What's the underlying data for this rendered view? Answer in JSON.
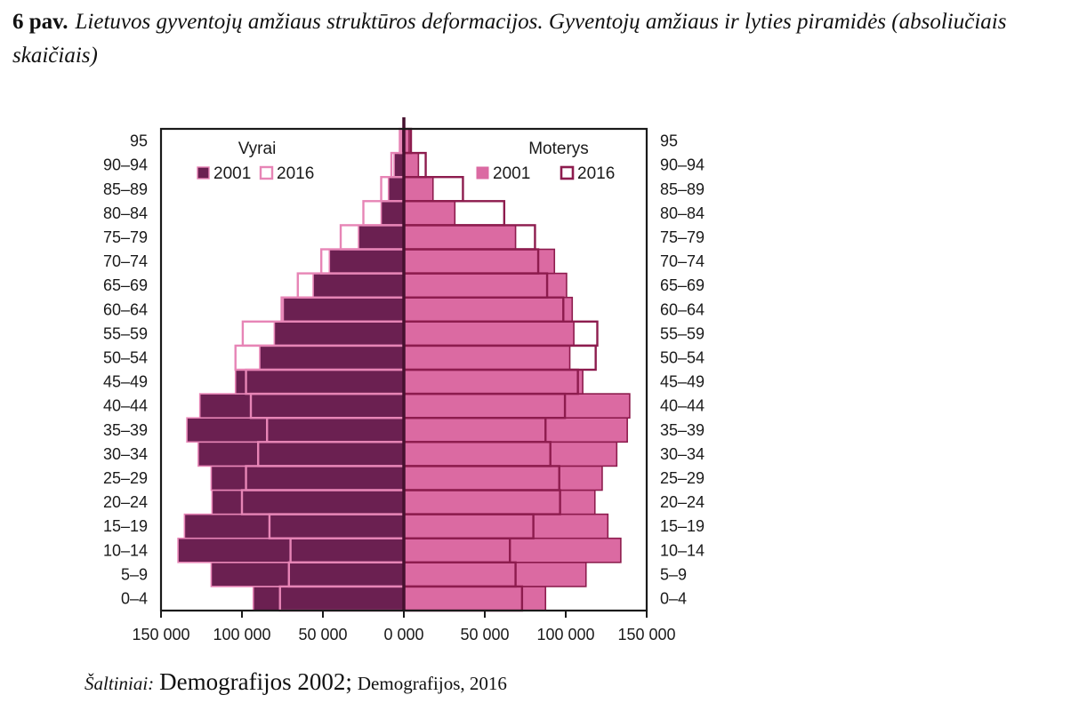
{
  "title": {
    "label": "6 pav.",
    "italic1": "Lietuvos gyventojų amžiaus struktūros deformacijos. Gyventojų amžiaus ir lyties piramidės",
    "italic2": "(absoliučiais skaičiais)"
  },
  "source": {
    "prefix": "Šaltiniai:",
    "part1": "Demografijos 2002;",
    "part2": "Demografijos, 2016"
  },
  "chart_data": {
    "type": "bar",
    "subtype": "population-pyramid",
    "title": "Gyventojų amžiaus ir lyties piramidės (absoliučiais skaičiais)",
    "age_groups_bottom_to_top": [
      "0–4",
      "5–9",
      "10–14",
      "15–19",
      "20–24",
      "25–29",
      "30–34",
      "35–39",
      "40–44",
      "45–49",
      "50–54",
      "55–59",
      "60–64",
      "65–69",
      "70–74",
      "75–79",
      "80–84",
      "85–89",
      "90–94",
      "95"
    ],
    "x_axis": {
      "tick_labels": [
        "150 000",
        "100 000",
        "50 000",
        "0 000",
        "50 000",
        "100 000",
        "150 000"
      ],
      "max": 150000,
      "grid": false
    },
    "legend": {
      "male": {
        "title": "Vyrai",
        "items": [
          "2001",
          "2016"
        ]
      },
      "female": {
        "title": "Moterys",
        "items": [
          "2001",
          "2016"
        ]
      }
    },
    "colors": {
      "male_fill": "#6B2051",
      "male_outline": "#E785B6",
      "female_fill": "#DB6AA2",
      "female_outline": "#8D1C4E",
      "axis": "#1a1a1a",
      "center_line": "#46112F",
      "text": "#1a1a1a"
    },
    "series": [
      {
        "name": "Vyrai 2001",
        "side": "left",
        "style": "filled",
        "values": [
          93000,
          119000,
          139500,
          135500,
          118500,
          119000,
          127000,
          134000,
          126000,
          104000,
          89000,
          80000,
          74500,
          56000,
          46000,
          28000,
          14000,
          9500,
          6000,
          1500
        ]
      },
      {
        "name": "Vyrai 2016",
        "side": "left",
        "style": "outline",
        "values": [
          76500,
          71000,
          70000,
          83000,
          100000,
          97500,
          90000,
          84500,
          94500,
          97500,
          104000,
          99500,
          75500,
          65500,
          51000,
          39000,
          25000,
          14000,
          7700,
          2500
        ]
      },
      {
        "name": "Moterys 2001",
        "side": "right",
        "style": "filled",
        "values": [
          87500,
          112500,
          134000,
          126000,
          118000,
          122500,
          131500,
          138000,
          139500,
          110500,
          102500,
          105000,
          104000,
          100500,
          93000,
          69000,
          31500,
          18000,
          9000,
          3300
        ]
      },
      {
        "name": "Moterys 2016",
        "side": "right",
        "style": "outline",
        "values": [
          73000,
          69000,
          65500,
          80000,
          96500,
          96000,
          90500,
          87500,
          99500,
          107500,
          118500,
          119500,
          98500,
          88500,
          83000,
          81000,
          62000,
          36500,
          13500,
          4400
        ]
      }
    ]
  }
}
